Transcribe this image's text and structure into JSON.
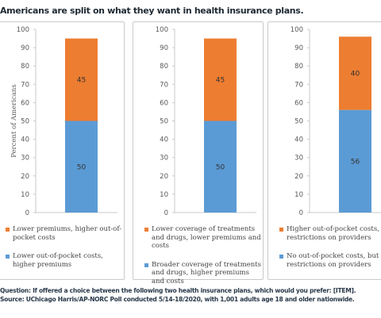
{
  "title": "Americans are split on what they want in health insurance plans.",
  "colors": {
    "bottom": "#5b9bd5",
    "top": "#ed7d31",
    "axis": "#c8c8c8",
    "grid": "#d9d9d9"
  },
  "chart_data": [
    {
      "type": "bar",
      "stacked": true,
      "ylabel": "Percent of Americans",
      "ylim": [
        0,
        100
      ],
      "yticks": [
        0,
        10,
        20,
        30,
        40,
        50,
        60,
        70,
        80,
        90,
        100
      ],
      "series": [
        {
          "name": "Lower out-of-pocket costs, higher premiums",
          "values": [
            50
          ]
        },
        {
          "name": "Lower premiums, higher out-of-pocket costs",
          "values": [
            45
          ]
        }
      ]
    },
    {
      "type": "bar",
      "stacked": true,
      "ylabel": "",
      "ylim": [
        0,
        100
      ],
      "yticks": [
        0,
        10,
        20,
        30,
        40,
        50,
        60,
        70,
        80,
        90,
        100
      ],
      "series": [
        {
          "name": "Broader coverage of treatments and drugs, higher premiums and costs",
          "values": [
            50
          ]
        },
        {
          "name": "Lower coverage of treatments and drugs, lower premiums and costs",
          "values": [
            45
          ]
        }
      ]
    },
    {
      "type": "bar",
      "stacked": true,
      "ylabel": "",
      "ylim": [
        0,
        100
      ],
      "yticks": [
        0,
        10,
        20,
        30,
        40,
        50,
        60,
        70,
        80,
        90,
        100
      ],
      "series": [
        {
          "name": "No out-of-pocket costs, but restrictions on providers",
          "values": [
            56
          ]
        },
        {
          "name": "Higher out-of-pocket costs, no restrictions on providers",
          "values": [
            40
          ]
        }
      ]
    }
  ],
  "legends": [
    {
      "top_label": "Lower premiums, higher out-of-pocket costs",
      "bottom_label": "Lower out-of-pocket costs, higher premiums"
    },
    {
      "top_label": "Lower coverage of treatments and drugs, lower premiums and costs",
      "bottom_label": "Broader coverage of treatments and drugs, higher premiums and costs"
    },
    {
      "top_label": "Higher out-of-pocket costs, no restrictions on providers",
      "bottom_label": "No out-of-pocket costs, but restrictions on providers"
    }
  ],
  "footer": {
    "question": "Question: If offered a choice between the following two health insurance plans, which would you prefer: [ITEM].",
    "source": "Source: UChicago Harris/AP-NORC Poll conducted 5/14-18/2020, with 1,001 adults age 18 and older nationwide."
  }
}
